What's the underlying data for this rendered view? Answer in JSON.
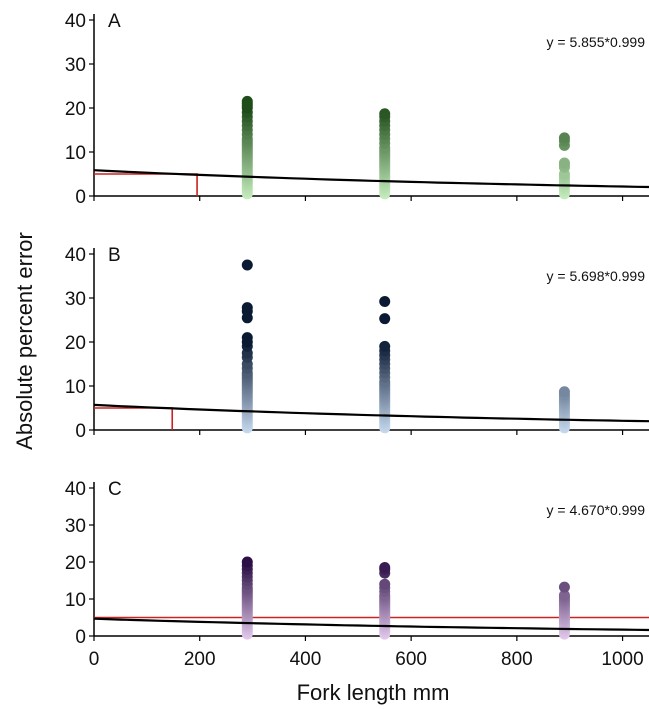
{
  "figure": {
    "ylabel": "Absolute percent error",
    "xlabel": "Fork length mm"
  },
  "chart_data": [
    {
      "panel": "A",
      "type": "scatter",
      "equation": "y = 5.855*0.999",
      "xlim": [
        0,
        1050
      ],
      "ylim": [
        0,
        40
      ],
      "x_ticks": [
        0,
        200,
        400,
        600,
        800,
        1000
      ],
      "y_ticks": [
        0,
        10,
        20,
        30,
        40
      ],
      "colors": {
        "dark": "#1f4d1a",
        "light": "#c8efc0"
      },
      "points": [
        {
          "x": 290,
          "ys": [
            0.5,
            1,
            1.5,
            2,
            2.5,
            3,
            3.5,
            4,
            4.5,
            5,
            5.5,
            6,
            6.5,
            7,
            7.5,
            8,
            8.5,
            9,
            9.5,
            10,
            10.5,
            11,
            11.5,
            12,
            12.5,
            13,
            14,
            15,
            16,
            17,
            18,
            19,
            20,
            20.5,
            21,
            21.5
          ]
        },
        {
          "x": 550,
          "ys": [
            0.5,
            1,
            1.5,
            2,
            2.5,
            3,
            3.5,
            4,
            4.5,
            5,
            5.5,
            6,
            6.5,
            7,
            7.5,
            8,
            8.5,
            9,
            9.5,
            10,
            10.5,
            11,
            12,
            13,
            14,
            15,
            16,
            17,
            18,
            18.7
          ]
        },
        {
          "x": 890,
          "ys": [
            0.5,
            1,
            1.5,
            2,
            2.5,
            3,
            3.5,
            4,
            4.5,
            5,
            6.5,
            7,
            7.5,
            11.5,
            12.5,
            13.2
          ]
        }
      ],
      "fit_line": {
        "color": "#000000",
        "intercept": 5.855,
        "base": 0.999
      },
      "ref_line": {
        "color": "#cc2222",
        "y": 5,
        "x_end": 195
      }
    },
    {
      "panel": "B",
      "type": "scatter",
      "equation": "y = 5.698*0.999",
      "xlim": [
        0,
        1050
      ],
      "ylim": [
        0,
        40
      ],
      "x_ticks": [
        0,
        200,
        400,
        600,
        800,
        1000
      ],
      "y_ticks": [
        0,
        10,
        20,
        30,
        40
      ],
      "colors": {
        "dark": "#0b1a33",
        "light": "#c8dcf2"
      },
      "points": [
        {
          "x": 290,
          "ys": [
            0.5,
            1,
            1.5,
            2,
            2.5,
            3,
            3.5,
            4,
            4.5,
            5,
            5.5,
            6,
            6.5,
            7,
            7.5,
            8,
            8.5,
            9,
            9.5,
            10,
            10.5,
            11,
            11.5,
            12,
            12.5,
            13,
            14,
            15,
            16.5,
            17.5,
            19,
            20,
            21,
            25.5,
            27,
            27.8,
            37.5
          ]
        },
        {
          "x": 550,
          "ys": [
            0.5,
            1,
            1.5,
            2,
            2.5,
            3,
            3.5,
            4,
            4.5,
            5,
            5.5,
            6,
            6.5,
            7,
            7.5,
            8,
            8.5,
            9,
            9.5,
            10,
            10.5,
            11,
            12,
            13,
            14,
            15,
            16,
            17,
            18,
            19,
            25.3,
            29.2
          ]
        },
        {
          "x": 890,
          "ys": [
            0.5,
            1,
            1.5,
            2,
            2.5,
            3,
            3.5,
            4,
            4.5,
            5,
            5.5,
            6,
            6.5,
            7,
            7.5,
            8,
            8.7
          ]
        }
      ],
      "fit_line": {
        "color": "#000000",
        "intercept": 5.698,
        "base": 0.999
      },
      "ref_line": {
        "color": "#cc2222",
        "y": 5,
        "x_end": 148
      }
    },
    {
      "panel": "C",
      "type": "scatter",
      "equation": "y = 4.670*0.999",
      "xlim": [
        0,
        1050
      ],
      "ylim": [
        0,
        40
      ],
      "x_ticks": [
        0,
        200,
        400,
        600,
        800,
        1000
      ],
      "y_ticks": [
        0,
        10,
        20,
        30,
        40
      ],
      "colors": {
        "dark": "#2b0f45",
        "light": "#e6cdef"
      },
      "points": [
        {
          "x": 290,
          "ys": [
            0.5,
            1,
            1.5,
            2,
            2.5,
            3,
            3.5,
            4,
            4.5,
            5,
            5.5,
            6,
            6.5,
            7,
            7.5,
            8,
            8.5,
            9,
            9.5,
            10,
            10.5,
            11,
            11.5,
            12,
            12.5,
            13,
            14,
            15,
            16,
            17,
            18,
            19,
            20
          ]
        },
        {
          "x": 550,
          "ys": [
            0.5,
            1,
            1.5,
            2,
            2.5,
            3,
            3.5,
            4,
            4.5,
            5,
            5.5,
            6,
            6.5,
            7,
            7.5,
            8,
            8.5,
            9,
            9.5,
            10,
            10.5,
            11,
            12,
            13,
            14,
            17,
            18,
            18.5
          ]
        },
        {
          "x": 890,
          "ys": [
            0.5,
            1,
            1.5,
            2,
            2.5,
            3,
            3.5,
            4,
            4.5,
            5,
            5.5,
            6,
            6.5,
            7,
            7.5,
            8,
            8.5,
            9,
            9.5,
            10,
            10.5,
            11,
            13.2
          ]
        }
      ],
      "fit_line": {
        "color": "#000000",
        "intercept": 4.67,
        "base": 0.999
      },
      "ref_line": {
        "color": "#cc2222",
        "y": 5,
        "x_end": 1050
      }
    }
  ]
}
